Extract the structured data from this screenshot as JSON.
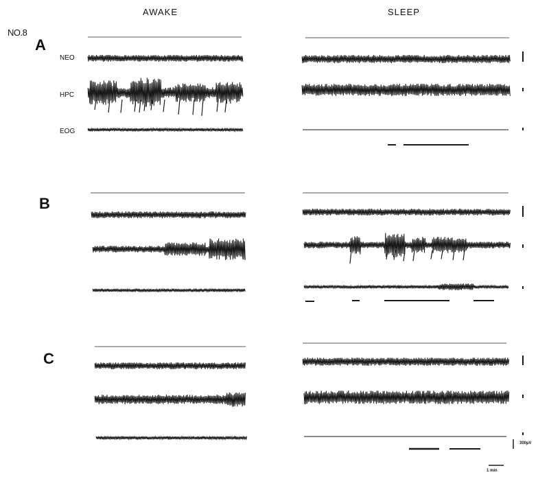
{
  "figure_id": "NO.8",
  "columns": {
    "awake": "AWAKE",
    "sleep": "SLEEP"
  },
  "panels": [
    {
      "label": "A"
    },
    {
      "label": "B"
    },
    {
      "label": "C"
    }
  ],
  "channels": [
    "NEO",
    "HPC",
    "EOG"
  ],
  "scale_bar": {
    "amplitude": "300µV",
    "time": "1 min"
  },
  "colors": {
    "trace": "#1a1a1a",
    "background": "#ffffff"
  }
}
